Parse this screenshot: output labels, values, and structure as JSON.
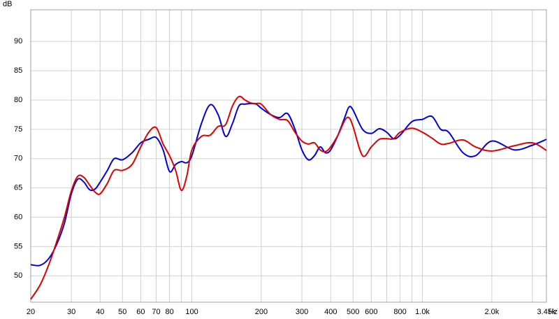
{
  "chart_data": {
    "type": "line",
    "xlabel": "Hz",
    "ylabel": "dB",
    "log_x": true,
    "grid": true,
    "xlim": [
      20,
      3450
    ],
    "ylim": [
      45.5,
      95.4
    ],
    "yticks": [
      50,
      55,
      60,
      65,
      70,
      75,
      80,
      85,
      90
    ],
    "xticks": [
      20,
      30,
      40,
      50,
      60,
      70,
      80,
      100,
      200,
      300,
      400,
      500,
      600,
      800,
      {
        "value": 1000,
        "label": "1.0k"
      },
      {
        "value": 2000,
        "label": "2.0k"
      },
      {
        "value": 3450,
        "label": "3.45k"
      }
    ],
    "xminor": [
      90,
      700,
      900,
      3000
    ],
    "x": [
      20,
      22,
      24,
      26,
      28,
      30,
      32,
      34,
      36,
      38,
      40,
      43,
      46,
      50,
      55,
      60,
      65,
      70,
      75,
      80,
      85,
      90,
      95,
      100,
      110,
      120,
      130,
      140,
      150,
      160,
      170,
      180,
      190,
      200,
      220,
      240,
      260,
      280,
      300,
      320,
      340,
      360,
      380,
      400,
      430,
      460,
      480,
      500,
      550,
      600,
      650,
      700,
      750,
      800,
      900,
      1000,
      1100,
      1200,
      1300,
      1500,
      1700,
      2000,
      2500,
      3000,
      3450
    ],
    "series": [
      {
        "name": "Blue",
        "color": "#0000dd",
        "values": [
          51.9,
          51.8,
          53,
          55.5,
          59,
          64,
          66.5,
          66,
          64.7,
          64.8,
          66,
          68,
          70,
          69.8,
          71,
          72.7,
          73.3,
          73.6,
          71.5,
          67.8,
          69,
          69.5,
          69.3,
          70.5,
          76,
          79.2,
          77.5,
          73.8,
          76,
          79,
          79.3,
          79.4,
          79.3,
          78.6,
          77.5,
          77,
          77.7,
          75,
          71.5,
          69.8,
          70.5,
          72,
          71,
          71.5,
          74,
          77,
          78.8,
          78.3,
          75,
          74.3,
          75.1,
          74.5,
          73.4,
          74,
          76.3,
          76.7,
          77.2,
          75,
          74.5,
          71,
          70.5,
          73,
          71.5,
          72.3,
          73.3
        ]
      },
      {
        "name": "Red",
        "color": "#e00000",
        "values": [
          46,
          48.5,
          52,
          56,
          60,
          64.5,
          67,
          66.8,
          65.5,
          64.3,
          64,
          65.8,
          68,
          68,
          69,
          72,
          74.5,
          75.3,
          72.5,
          70.5,
          68,
          64.6,
          67,
          71.5,
          73.8,
          74,
          75.5,
          75.8,
          79,
          80.6,
          80,
          79.5,
          79.4,
          79.3,
          77.5,
          76.7,
          76.5,
          74.5,
          73,
          72.5,
          72.7,
          71.5,
          71.2,
          72,
          74,
          76.5,
          77,
          75.5,
          70.5,
          72,
          73.3,
          73.4,
          73.4,
          74.5,
          75.2,
          74.5,
          73.5,
          72.5,
          72.6,
          73.2,
          72,
          71.3,
          72.2,
          72.7,
          71.4
        ]
      }
    ]
  }
}
